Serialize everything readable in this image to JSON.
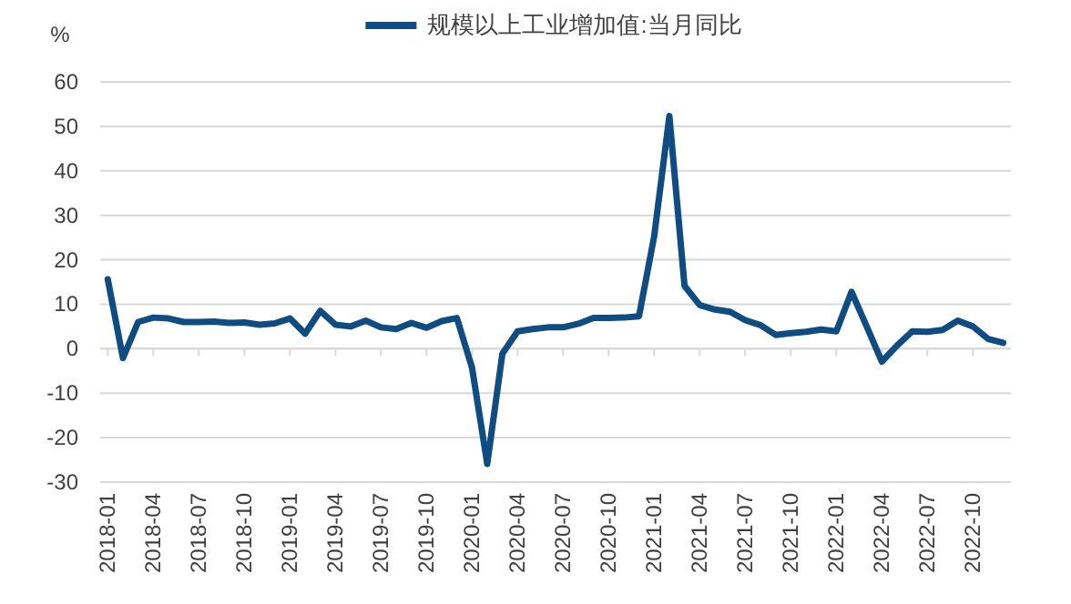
{
  "chart_data": {
    "type": "line",
    "ylabel": "%",
    "legend": "top",
    "categories": [
      "2018-01",
      null,
      null,
      "2018-04",
      null,
      null,
      "2018-07",
      null,
      null,
      "2018-10",
      null,
      null,
      "2019-01",
      null,
      null,
      "2019-04",
      null,
      null,
      "2019-07",
      null,
      null,
      "2019-10",
      null,
      null,
      "2020-01",
      null,
      null,
      "2020-04",
      null,
      null,
      "2020-07",
      null,
      null,
      "2020-10",
      null,
      null,
      "2021-01",
      null,
      null,
      "2021-04",
      null,
      null,
      "2021-07",
      null,
      null,
      "2021-10",
      null,
      null,
      "2022-01",
      null,
      null,
      "2022-04",
      null,
      null,
      "2022-07",
      null,
      null,
      "2022-10",
      null,
      null
    ],
    "series": [
      {
        "name": "规模以上工业增加值:当月同比",
        "color": "#0f4c81",
        "values": [
          15.6,
          -2.1,
          6.0,
          7.0,
          6.8,
          6.0,
          6.0,
          6.1,
          5.8,
          5.9,
          5.4,
          5.7,
          6.8,
          3.4,
          8.5,
          5.4,
          5.0,
          6.3,
          4.8,
          4.4,
          5.8,
          4.7,
          6.2,
          6.9,
          -4.3,
          -25.9,
          -1.1,
          3.9,
          4.4,
          4.8,
          4.8,
          5.6,
          6.9,
          6.9,
          7.0,
          7.3,
          25.3,
          52.3,
          14.1,
          9.8,
          8.8,
          8.3,
          6.4,
          5.3,
          3.1,
          3.5,
          3.8,
          4.3,
          3.9,
          12.8,
          5.0,
          -2.9,
          0.7,
          3.9,
          3.8,
          4.2,
          6.3,
          5.0,
          2.2,
          1.3
        ]
      }
    ],
    "ylim": [
      -30,
      60
    ],
    "yticks": [
      -30,
      -20,
      -10,
      0,
      10,
      20,
      30,
      40,
      50,
      60
    ],
    "grid": "y",
    "marker": "none",
    "line_style": "solid"
  }
}
